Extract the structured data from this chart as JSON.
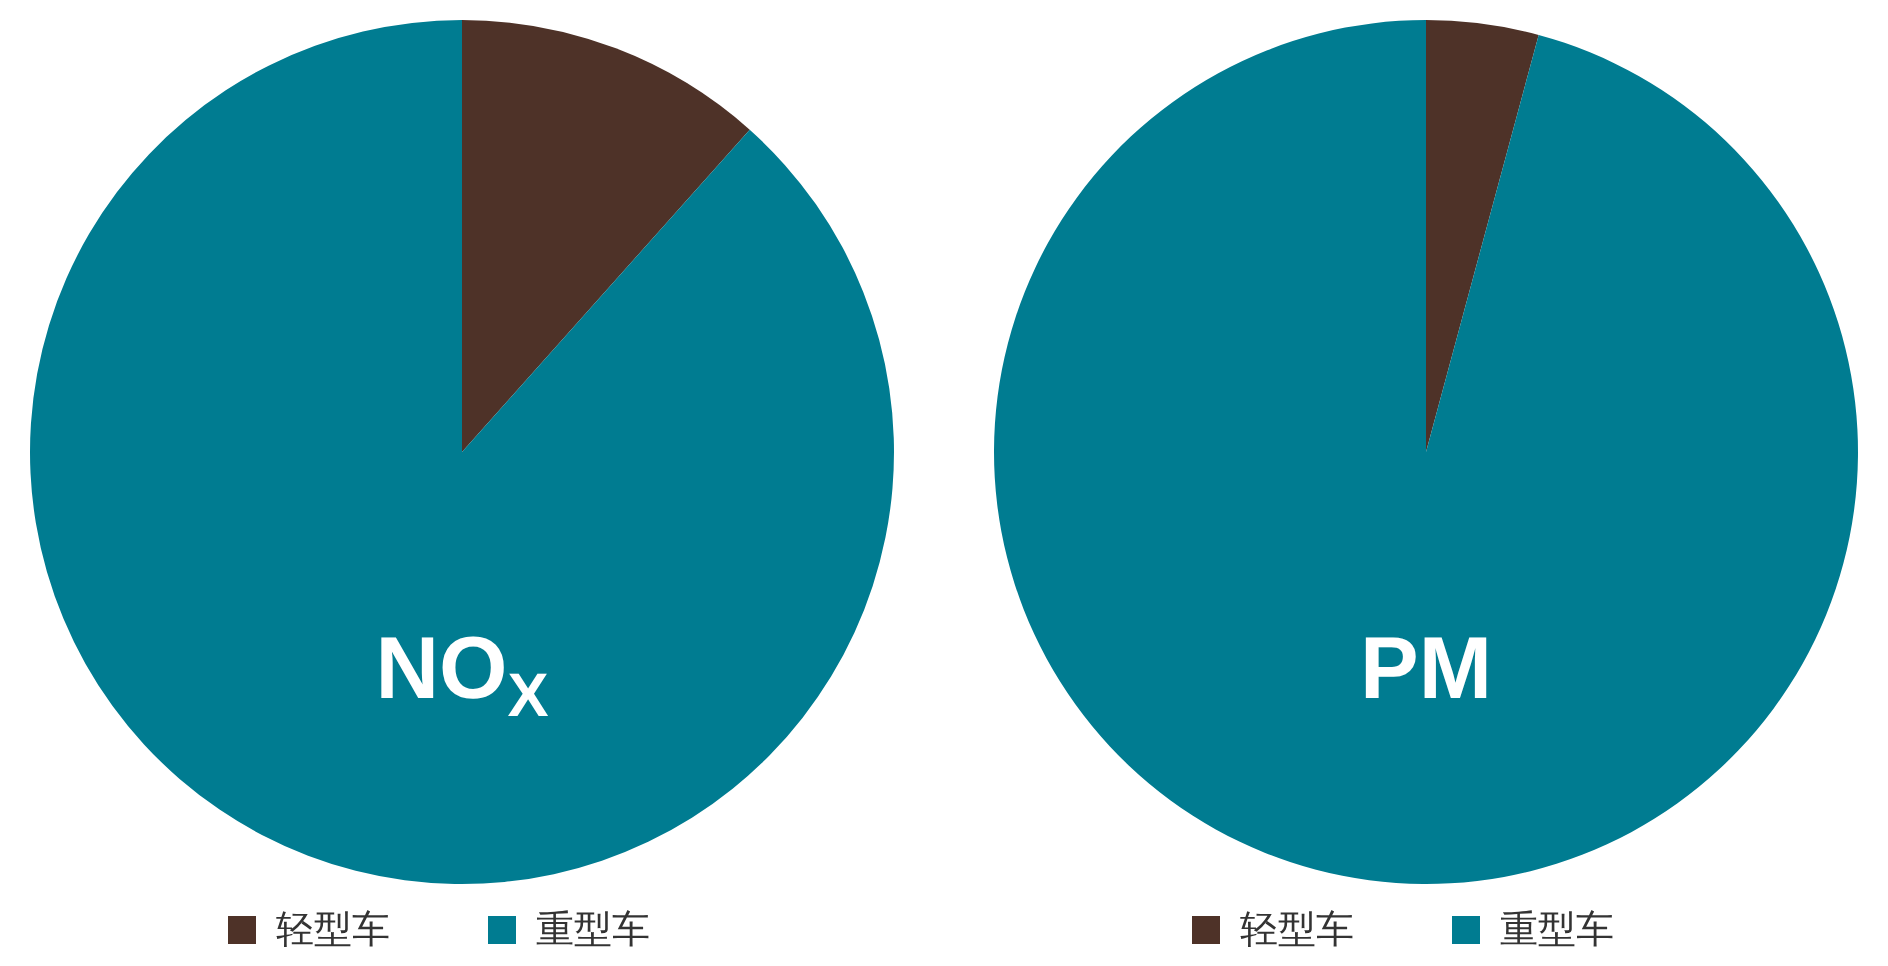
{
  "chart_data": [
    {
      "type": "pie",
      "title": "NO$_{X}$",
      "categories": [
        "轻型车",
        "重型车"
      ],
      "values": [
        11.6,
        88.4
      ],
      "colors": [
        "#4e3228",
        "#007c91"
      ],
      "legend": "bottom"
    },
    {
      "type": "pie",
      "title": "PM",
      "categories": [
        "轻型车",
        "重型车"
      ],
      "values": [
        4.2,
        95.8
      ],
      "colors": [
        "#4e3228",
        "#007c91"
      ],
      "legend": "bottom"
    }
  ]
}
